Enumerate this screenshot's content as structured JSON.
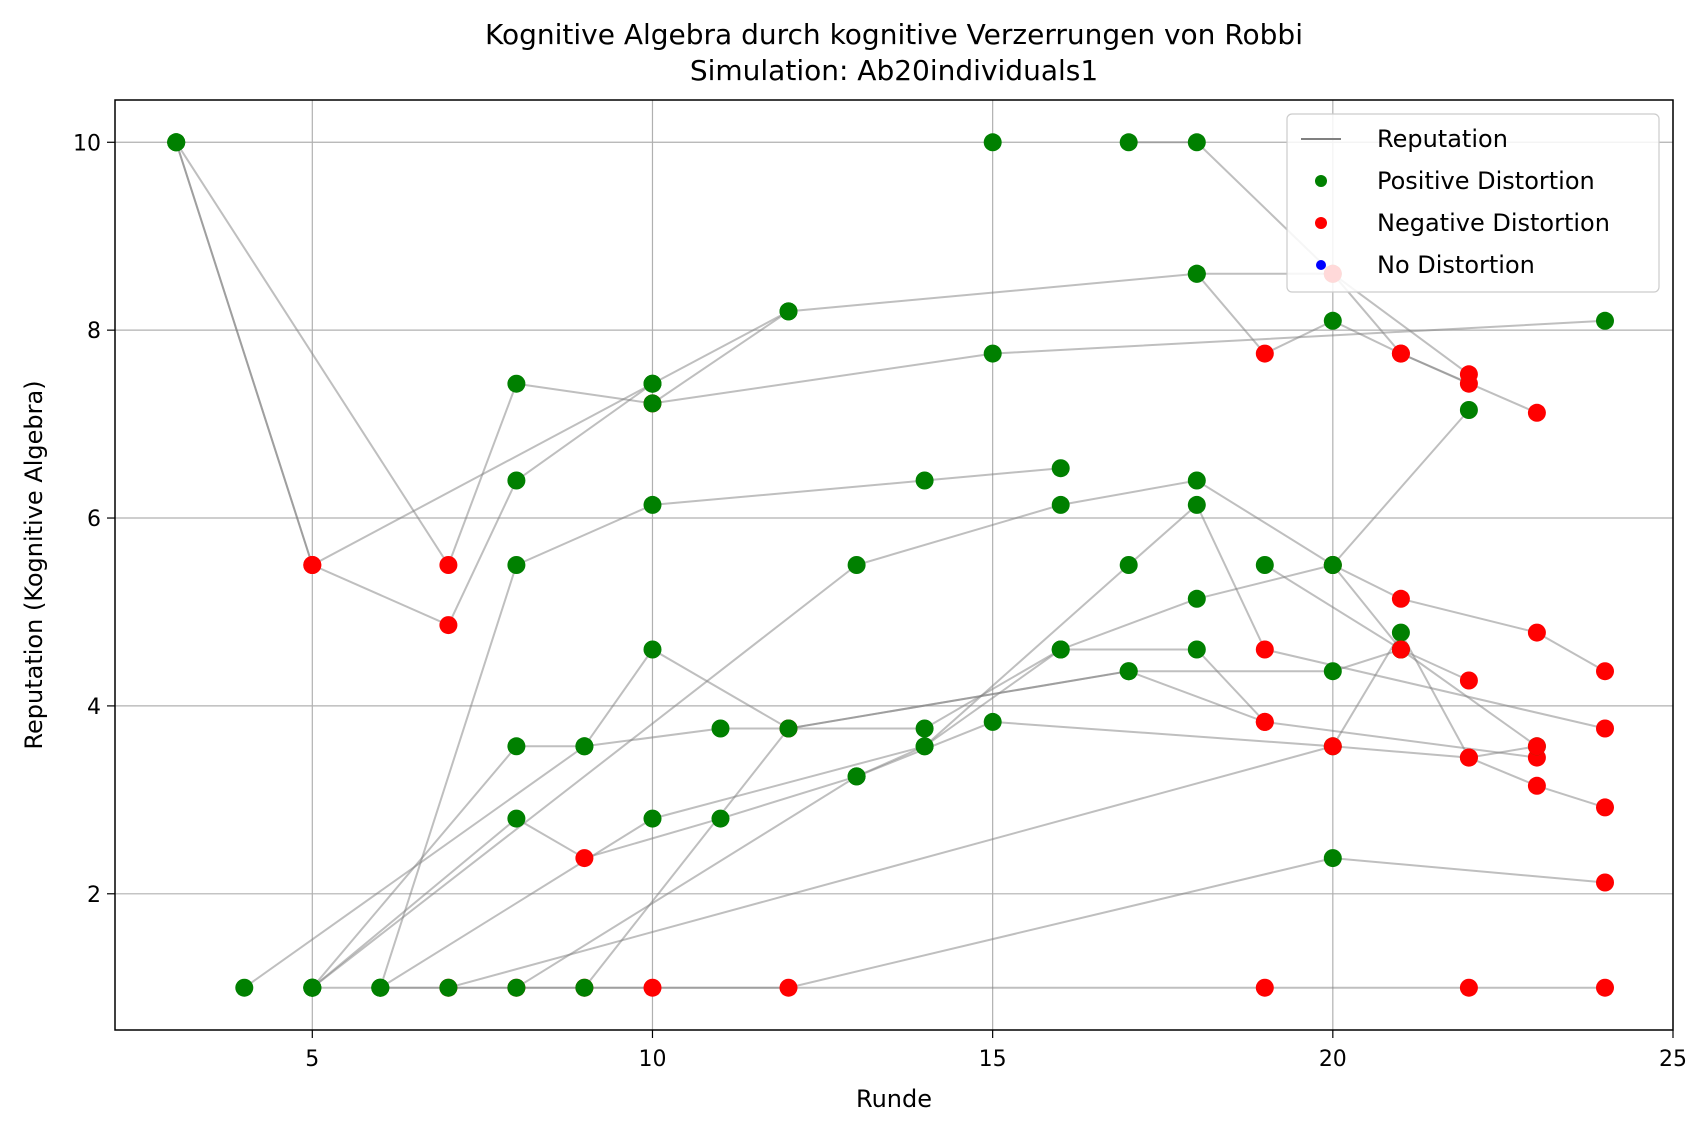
{
  "chart_data": {
    "type": "scatter",
    "title": "Kognitive Algebra durch kognitive Verzerrungen von Robbi",
    "subtitle": "Simulation: Ab20individuals1",
    "xlabel": "Runde",
    "ylabel": "Reputation (Kognitive Algebra)",
    "xlim": [
      2.1,
      25
    ],
    "ylim": [
      0.55,
      10.45
    ],
    "xticks": [
      5,
      10,
      15,
      20,
      25
    ],
    "yticks": [
      2,
      4,
      6,
      8,
      10
    ],
    "grid": true,
    "legend_position": "top-right",
    "colors": {
      "positive": "#008000",
      "negative": "#ff0000",
      "none": "#0000ff",
      "line": "#808080"
    },
    "legend": [
      {
        "label": "Reputation",
        "kind": "line"
      },
      {
        "label": "Positive Distortion",
        "kind": "positive"
      },
      {
        "label": "Negative Distortion",
        "kind": "negative"
      },
      {
        "label": "No Distortion",
        "kind": "none"
      }
    ],
    "series": [
      {
        "points": [
          [
            3,
            10
          ],
          [
            5,
            5.5
          ],
          [
            7,
            4.86
          ],
          [
            8,
            6.4
          ],
          [
            10,
            7.43
          ],
          [
            12,
            8.2
          ],
          [
            18,
            8.6
          ],
          [
            20,
            8.6
          ],
          [
            21,
            7.75
          ],
          [
            22,
            7.43
          ]
        ]
      },
      {
        "points": [
          [
            3,
            10
          ],
          [
            5,
            5.5
          ],
          [
            10,
            7.43
          ]
        ]
      },
      {
        "points": [
          [
            3,
            10
          ],
          [
            7,
            5.5
          ],
          [
            8,
            7.43
          ],
          [
            10,
            7.22
          ],
          [
            12,
            8.2
          ]
        ]
      },
      {
        "points": [
          [
            5,
            1
          ],
          [
            10,
            1
          ],
          [
            19,
            1
          ],
          [
            22,
            1
          ],
          [
            24,
            1
          ]
        ]
      },
      {
        "points": [
          [
            6,
            1
          ],
          [
            7,
            1
          ],
          [
            8,
            1
          ],
          [
            9,
            1
          ],
          [
            12,
            1
          ],
          [
            20,
            2.38
          ],
          [
            24,
            2.12
          ]
        ]
      },
      {
        "points": [
          [
            4,
            1
          ],
          [
            9,
            3.57
          ],
          [
            10,
            4.6
          ],
          [
            12,
            3.76
          ],
          [
            17,
            4.37
          ],
          [
            19,
            3.83
          ],
          [
            23,
            3.45
          ]
        ]
      },
      {
        "points": [
          [
            5,
            1
          ],
          [
            13,
            5.5
          ],
          [
            16,
            6.14
          ],
          [
            18,
            6.4
          ],
          [
            20,
            5.5
          ],
          [
            21,
            5.14
          ],
          [
            23,
            4.78
          ],
          [
            24,
            4.37
          ]
        ]
      },
      {
        "points": [
          [
            5,
            1
          ],
          [
            8,
            3.57
          ],
          [
            9,
            3.57
          ],
          [
            11,
            3.76
          ],
          [
            14,
            3.76
          ],
          [
            16,
            4.6
          ],
          [
            18,
            4.6
          ],
          [
            19,
            3.83
          ]
        ]
      },
      {
        "points": [
          [
            5,
            1
          ],
          [
            8,
            2.8
          ],
          [
            9,
            2.38
          ],
          [
            11,
            2.8
          ],
          [
            13,
            3.25
          ],
          [
            14,
            3.57
          ],
          [
            16,
            4.6
          ],
          [
            18,
            5.14
          ],
          [
            20,
            5.5
          ],
          [
            21,
            4.6
          ],
          [
            22,
            4.27
          ]
        ]
      },
      {
        "points": [
          [
            6,
            1
          ],
          [
            8,
            5.5
          ],
          [
            10,
            6.14
          ],
          [
            14,
            6.4
          ],
          [
            16,
            6.53
          ]
        ]
      },
      {
        "points": [
          [
            6,
            1
          ],
          [
            10,
            2.8
          ],
          [
            14,
            3.57
          ],
          [
            17,
            5.5
          ],
          [
            18,
            6.14
          ],
          [
            19,
            4.6
          ],
          [
            24,
            3.76
          ]
        ]
      },
      {
        "points": [
          [
            7,
            1
          ],
          [
            20,
            3.57
          ],
          [
            22,
            3.45
          ],
          [
            23,
            3.15
          ],
          [
            24,
            2.92
          ]
        ]
      },
      {
        "points": [
          [
            8,
            1
          ],
          [
            13,
            3.25
          ],
          [
            15,
            3.83
          ],
          [
            20,
            3.57
          ],
          [
            21,
            4.78
          ],
          [
            22,
            3.45
          ],
          [
            23,
            3.57
          ]
        ]
      },
      {
        "points": [
          [
            9,
            1
          ],
          [
            12,
            3.76
          ],
          [
            17,
            4.37
          ],
          [
            20,
            4.37
          ],
          [
            21,
            4.6
          ]
        ]
      },
      {
        "points": [
          [
            10,
            7.22
          ],
          [
            15,
            7.75
          ],
          [
            24,
            8.1
          ]
        ]
      },
      {
        "points": [
          [
            17,
            10
          ],
          [
            18,
            10
          ],
          [
            20,
            8.6
          ],
          [
            22,
            7.53
          ]
        ]
      },
      {
        "points": [
          [
            18,
            8.6
          ],
          [
            19,
            7.75
          ],
          [
            20,
            8.1
          ],
          [
            21,
            7.75
          ],
          [
            23,
            7.12
          ]
        ]
      },
      {
        "points": [
          [
            19,
            5.5
          ],
          [
            21,
            4.6
          ],
          [
            23,
            3.57
          ]
        ]
      },
      {
        "points": [
          [
            20,
            5.5
          ],
          [
            22,
            7.15
          ]
        ]
      },
      {
        "points": [
          [
            15,
            10
          ]
        ]
      }
    ]
  }
}
